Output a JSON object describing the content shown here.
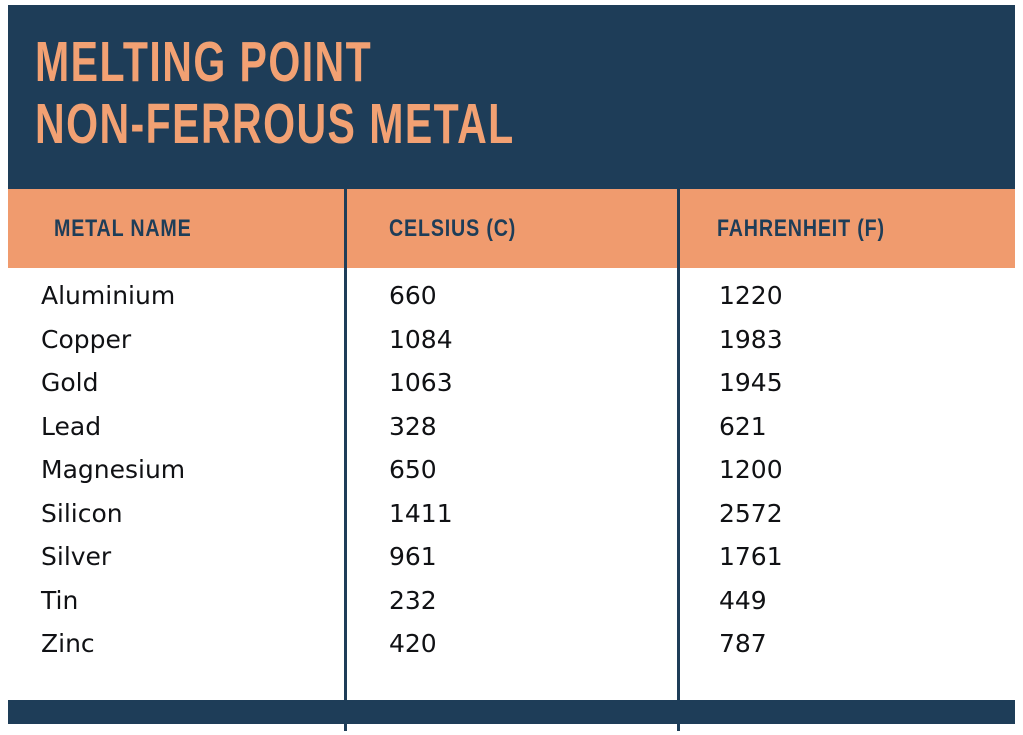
{
  "header": {
    "title_line1": "MELTING POINT",
    "title_line2": "NON-FERROUS METAL"
  },
  "table": {
    "columns": [
      {
        "label": "METAL NAME"
      },
      {
        "label": "CELSIUS (C)"
      },
      {
        "label": "FAHRENHEIT (F)"
      }
    ],
    "rows": [
      {
        "name": "Aluminium",
        "celsius": "660",
        "fahrenheit": "1220"
      },
      {
        "name": "Copper",
        "celsius": "1084",
        "fahrenheit": "1983"
      },
      {
        "name": "Gold",
        "celsius": "1063",
        "fahrenheit": "1945"
      },
      {
        "name": "Lead",
        "celsius": "328",
        "fahrenheit": "621"
      },
      {
        "name": "Magnesium",
        "celsius": "650",
        "fahrenheit": "1200"
      },
      {
        "name": "Silicon",
        "celsius": "1411",
        "fahrenheit": "2572"
      },
      {
        "name": "Silver",
        "celsius": "961",
        "fahrenheit": "1761"
      },
      {
        "name": "Tin",
        "celsius": "232",
        "fahrenheit": "449"
      },
      {
        "name": "Zinc",
        "celsius": "420",
        "fahrenheit": "787"
      }
    ]
  },
  "colors": {
    "navy": "#1e3d58",
    "orange": "#f09b6e",
    "orange_title": "#f2a173",
    "text": "#101114",
    "background": "#ffffff"
  },
  "chart_data": {
    "type": "table",
    "title": "MELTING POINT NON-FERROUS METAL",
    "columns": [
      "METAL NAME",
      "CELSIUS (C)",
      "FAHRENHEIT (F)"
    ],
    "rows": [
      [
        "Aluminium",
        660,
        1220
      ],
      [
        "Copper",
        1084,
        1983
      ],
      [
        "Gold",
        1063,
        1945
      ],
      [
        "Lead",
        328,
        621
      ],
      [
        "Magnesium",
        650,
        1200
      ],
      [
        "Silicon",
        1411,
        2572
      ],
      [
        "Silver",
        961,
        1761
      ],
      [
        "Tin",
        232,
        449
      ],
      [
        "Zinc",
        420,
        787
      ]
    ]
  }
}
